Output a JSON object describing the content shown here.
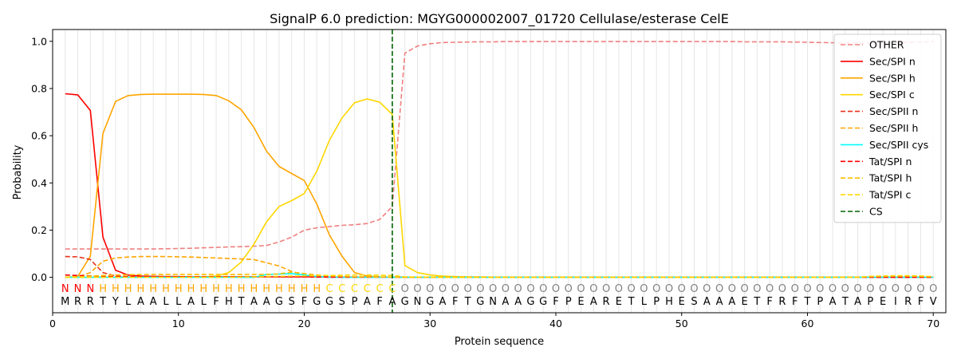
{
  "chart_data": {
    "type": "line",
    "title": "SignalP 6.0 prediction: MGYG000002007_01720 Cellulase/esterase CelE",
    "xlabel": "Protein sequence",
    "ylabel": "Probability",
    "xlim": [
      0,
      71
    ],
    "ylim": [
      -0.15,
      1.05
    ],
    "xticks": [
      0,
      10,
      20,
      30,
      40,
      50,
      60,
      70
    ],
    "yticks": [
      0.0,
      0.2,
      0.4,
      0.6,
      0.8,
      1.0
    ],
    "xtick_labels": [
      "0",
      "10",
      "20",
      "30",
      "40",
      "50",
      "60",
      "70"
    ],
    "ytick_labels": [
      "0.0",
      "0.2",
      "0.4",
      "0.6",
      "0.8",
      "1.0"
    ],
    "grid": "vertical lines at each residue",
    "legend_position": "top-right",
    "sequence": "MRRTYLAALLALFHTAAGSFGGSPAFAGNGAFTGNAAGGFPEARETLPHESAAAETFRFTPATAPEIRFV",
    "labels": "NNNHHHHHHHHHHHHHHHHHHCCCCCCOOOOOOOOOOOOOOOOOOOOOOOOOOOOOOOOOOOOOOOOOOO",
    "label_colors": {
      "N": "#ff0000",
      "H": "#ffa500",
      "C": "#ffd700",
      "O": "#808080"
    },
    "cs_position": 27,
    "series": [
      {
        "name": "OTHER",
        "color": "#f08080",
        "dash": "dashed",
        "values": [
          0.12,
          0.12,
          0.12,
          0.12,
          0.12,
          0.12,
          0.12,
          0.12,
          0.121,
          0.122,
          0.123,
          0.125,
          0.127,
          0.129,
          0.13,
          0.132,
          0.135,
          0.15,
          0.17,
          0.2,
          0.21,
          0.215,
          0.22,
          0.223,
          0.228,
          0.245,
          0.3,
          0.95,
          0.98,
          0.99,
          0.995,
          0.996,
          0.997,
          0.998,
          0.998,
          0.999,
          0.999,
          0.999,
          0.999,
          0.999,
          0.999,
          0.999,
          0.999,
          0.999,
          0.999,
          0.999,
          0.999,
          0.999,
          0.999,
          0.999,
          0.999,
          0.999,
          0.999,
          0.999,
          0.998,
          0.998,
          0.998,
          0.998,
          0.997,
          0.996,
          0.995,
          0.994,
          0.993,
          0.993,
          0.993,
          0.994,
          0.995,
          0.996,
          0.997,
          0.999
        ]
      },
      {
        "name": "Sec/SPI n",
        "color": "#ff0000",
        "dash": "solid",
        "values": [
          0.778,
          0.773,
          0.707,
          0.17,
          0.03,
          0.01,
          0.005,
          0.004,
          0.003,
          0.003,
          0.002,
          0.002,
          0.002,
          0.002,
          0.002,
          0.002,
          0.002,
          0.002,
          0.002,
          0.002,
          0.002,
          0.001,
          0.001,
          0.001,
          0.001,
          0.001,
          0.001,
          0.0,
          0.0,
          0.0,
          0.0,
          0.0,
          0.0,
          0.0,
          0.0,
          0.0,
          0.0,
          0.0,
          0.0,
          0.0,
          0.0,
          0.0,
          0.0,
          0.0,
          0.0,
          0.0,
          0.0,
          0.0,
          0.0,
          0.0,
          0.0,
          0.0,
          0.0,
          0.0,
          0.0,
          0.0,
          0.0,
          0.0,
          0.0,
          0.0,
          0.0,
          0.0,
          0.0,
          0.0,
          0.0,
          0.0,
          0.0,
          0.0,
          0.0,
          0.0
        ]
      },
      {
        "name": "Sec/SPI h",
        "color": "#ffa500",
        "dash": "solid",
        "values": [
          0.0,
          0.003,
          0.09,
          0.61,
          0.745,
          0.77,
          0.775,
          0.776,
          0.776,
          0.776,
          0.776,
          0.775,
          0.77,
          0.748,
          0.71,
          0.635,
          0.535,
          0.47,
          0.44,
          0.41,
          0.31,
          0.18,
          0.09,
          0.02,
          0.005,
          0.002,
          0.001,
          0.0,
          0.0,
          0.0,
          0.0,
          0.0,
          0.0,
          0.0,
          0.0,
          0.0,
          0.0,
          0.0,
          0.0,
          0.0,
          0.0,
          0.0,
          0.0,
          0.0,
          0.0,
          0.0,
          0.0,
          0.0,
          0.0,
          0.0,
          0.0,
          0.0,
          0.0,
          0.0,
          0.0,
          0.0,
          0.0,
          0.0,
          0.0,
          0.0,
          0.0,
          0.0,
          0.0,
          0.0,
          0.0,
          0.0,
          0.0,
          0.0,
          0.0,
          0.0
        ]
      },
      {
        "name": "Sec/SPI c",
        "color": "#ffd700",
        "dash": "solid",
        "values": [
          0.0,
          0.0,
          0.0,
          0.0,
          0.0,
          0.0,
          0.0,
          0.0,
          0.0,
          0.0,
          0.001,
          0.002,
          0.005,
          0.02,
          0.065,
          0.14,
          0.235,
          0.3,
          0.325,
          0.355,
          0.45,
          0.58,
          0.675,
          0.74,
          0.756,
          0.742,
          0.69,
          0.05,
          0.02,
          0.01,
          0.005,
          0.003,
          0.002,
          0.002,
          0.001,
          0.001,
          0.001,
          0.001,
          0.001,
          0.001,
          0.001,
          0.001,
          0.001,
          0.001,
          0.001,
          0.001,
          0.001,
          0.001,
          0.001,
          0.001,
          0.001,
          0.001,
          0.001,
          0.001,
          0.001,
          0.001,
          0.001,
          0.001,
          0.001,
          0.001,
          0.001,
          0.001,
          0.001,
          0.001,
          0.001,
          0.001,
          0.001,
          0.001,
          0.001,
          0.001
        ]
      },
      {
        "name": "Sec/SPII n",
        "color": "#e8321a",
        "dash": "dashed",
        "values": [
          0.088,
          0.087,
          0.075,
          0.02,
          0.006,
          0.003,
          0.002,
          0.002,
          0.002,
          0.002,
          0.002,
          0.002,
          0.002,
          0.002,
          0.002,
          0.002,
          0.002,
          0.002,
          0.002,
          0.002,
          0.002,
          0.001,
          0.001,
          0.001,
          0.001,
          0.001,
          0.001,
          0.0,
          0.0,
          0.0,
          0.0,
          0.0,
          0.0,
          0.0,
          0.0,
          0.0,
          0.0,
          0.0,
          0.0,
          0.0,
          0.0,
          0.0,
          0.0,
          0.0,
          0.0,
          0.0,
          0.0,
          0.0,
          0.0,
          0.0,
          0.0,
          0.0,
          0.0,
          0.0,
          0.0,
          0.0,
          0.0,
          0.0,
          0.0,
          0.0,
          0.0,
          0.0,
          0.0,
          0.0,
          0.0,
          0.0,
          0.0,
          0.0,
          0.0,
          0.0
        ]
      },
      {
        "name": "Sec/SPII h",
        "color": "#ffa500",
        "dash": "dashed",
        "values": [
          0.0,
          0.002,
          0.02,
          0.068,
          0.082,
          0.086,
          0.088,
          0.088,
          0.088,
          0.087,
          0.086,
          0.084,
          0.082,
          0.08,
          0.078,
          0.075,
          0.062,
          0.048,
          0.025,
          0.01,
          0.005,
          0.003,
          0.002,
          0.001,
          0.001,
          0.001,
          0.001,
          0.0,
          0.0,
          0.0,
          0.0,
          0.0,
          0.0,
          0.0,
          0.0,
          0.0,
          0.0,
          0.0,
          0.0,
          0.0,
          0.0,
          0.0,
          0.0,
          0.0,
          0.0,
          0.0,
          0.0,
          0.0,
          0.0,
          0.0,
          0.0,
          0.0,
          0.0,
          0.0,
          0.0,
          0.0,
          0.0,
          0.0,
          0.0,
          0.0,
          0.0,
          0.0,
          0.0,
          0.0,
          0.0,
          0.0,
          0.0,
          0.0,
          0.0,
          0.0
        ]
      },
      {
        "name": "Sec/SPII cys",
        "color": "#00ffff",
        "dash": "solid",
        "values": [
          0.0,
          0.0,
          0.0,
          0.0,
          0.0,
          0.0,
          0.0,
          0.0,
          0.0,
          0.0,
          0.0,
          0.0,
          0.0,
          0.0,
          0.0,
          0.0,
          0.012,
          0.014,
          0.016,
          0.01,
          0.003,
          0.001,
          0.0,
          0.0,
          0.0,
          0.0,
          0.0,
          0.0,
          0.0,
          0.0,
          0.0,
          0.0,
          0.0,
          0.0,
          0.0,
          0.0,
          0.0,
          0.0,
          0.0,
          0.0,
          0.0,
          0.0,
          0.0,
          0.0,
          0.0,
          0.0,
          0.0,
          0.0,
          0.0,
          0.0,
          0.0,
          0.0,
          0.0,
          0.0,
          0.0,
          0.0,
          0.0,
          0.0,
          0.0,
          0.0,
          0.0,
          0.0,
          0.0,
          0.0,
          0.0,
          0.0,
          0.0,
          0.0,
          0.0,
          0.0
        ]
      },
      {
        "name": "Tat/SPI n",
        "color": "#ff0000",
        "dash": "dashed",
        "values": [
          0.01,
          0.008,
          0.006,
          0.004,
          0.003,
          0.002,
          0.002,
          0.002,
          0.002,
          0.002,
          0.002,
          0.002,
          0.002,
          0.002,
          0.002,
          0.002,
          0.002,
          0.002,
          0.002,
          0.002,
          0.001,
          0.001,
          0.001,
          0.001,
          0.001,
          0.001,
          0.001,
          0.0,
          0.0,
          0.0,
          0.0,
          0.0,
          0.0,
          0.0,
          0.0,
          0.0,
          0.0,
          0.0,
          0.0,
          0.0,
          0.0,
          0.0,
          0.0,
          0.0,
          0.0,
          0.0,
          0.0,
          0.0,
          0.0,
          0.0,
          0.0,
          0.0,
          0.0,
          0.0,
          0.0,
          0.0,
          0.0,
          0.0,
          0.0,
          0.0,
          0.0,
          0.0,
          0.0,
          0.0,
          0.0,
          0.0,
          0.0,
          0.0,
          0.0,
          0.0
        ]
      },
      {
        "name": "Tat/SPI h",
        "color": "#ffbf00",
        "dash": "dashed",
        "values": [
          0.0,
          0.002,
          0.005,
          0.008,
          0.01,
          0.011,
          0.012,
          0.012,
          0.012,
          0.012,
          0.012,
          0.012,
          0.012,
          0.012,
          0.012,
          0.012,
          0.012,
          0.015,
          0.022,
          0.016,
          0.01,
          0.006,
          0.004,
          0.002,
          0.002,
          0.001,
          0.001,
          0.0,
          0.0,
          0.0,
          0.0,
          0.0,
          0.0,
          0.0,
          0.0,
          0.0,
          0.0,
          0.0,
          0.0,
          0.0,
          0.0,
          0.0,
          0.0,
          0.0,
          0.0,
          0.0,
          0.0,
          0.0,
          0.0,
          0.0,
          0.0,
          0.0,
          0.0,
          0.0,
          0.0,
          0.0,
          0.0,
          0.0,
          0.0,
          0.0,
          0.0,
          0.0,
          0.0,
          0.0,
          0.003,
          0.004,
          0.005,
          0.005,
          0.004,
          0.002
        ]
      },
      {
        "name": "Tat/SPI c",
        "color": "#ffd700",
        "dash": "dashed",
        "values": [
          0.0,
          0.0,
          0.0,
          0.0,
          0.0,
          0.0,
          0.0,
          0.0,
          0.0,
          0.0,
          0.0,
          0.0,
          0.0,
          0.0,
          0.001,
          0.002,
          0.003,
          0.004,
          0.005,
          0.006,
          0.007,
          0.008,
          0.009,
          0.01,
          0.01,
          0.009,
          0.008,
          0.002,
          0.001,
          0.001,
          0.0,
          0.0,
          0.0,
          0.0,
          0.0,
          0.0,
          0.0,
          0.0,
          0.0,
          0.0,
          0.0,
          0.0,
          0.0,
          0.0,
          0.0,
          0.0,
          0.0,
          0.0,
          0.0,
          0.0,
          0.0,
          0.0,
          0.0,
          0.0,
          0.0,
          0.0,
          0.0,
          0.0,
          0.0,
          0.0,
          0.0,
          0.0,
          0.0,
          0.0,
          0.004,
          0.006,
          0.007,
          0.007,
          0.006,
          0.003
        ]
      },
      {
        "name": "CS",
        "color": "#006400",
        "dash": "dashed",
        "vertical": true
      }
    ]
  }
}
